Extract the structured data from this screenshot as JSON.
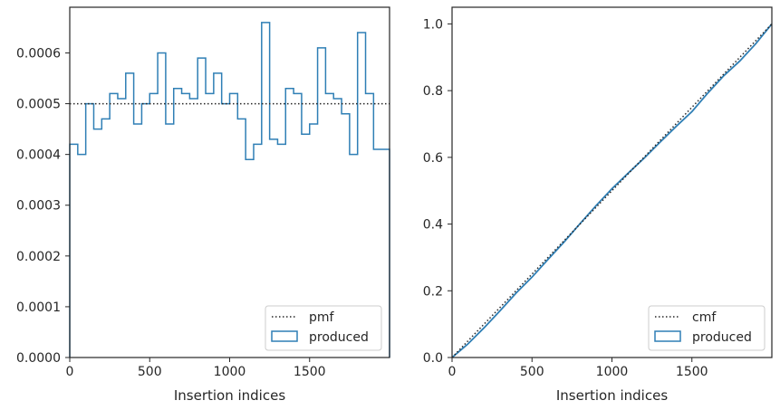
{
  "chart_data": [
    {
      "type": "histogram",
      "xlabel": "Insertion indices",
      "ylabel": "",
      "xlim": [
        0,
        2000
      ],
      "ylim": [
        0,
        0.00069
      ],
      "x_ticks": [
        0,
        500,
        1000,
        1500
      ],
      "x_tick_labels": [
        "0",
        "500",
        "1000",
        "1500"
      ],
      "y_ticks": [
        0,
        0.0001,
        0.0002,
        0.0003,
        0.0004,
        0.0005,
        0.0006
      ],
      "y_tick_labels": [
        "0.0000",
        "0.0001",
        "0.0002",
        "0.0003",
        "0.0004",
        "0.0005",
        "0.0006"
      ],
      "legend_position": "lower right",
      "reference": {
        "name": "pmf",
        "style": "dotted",
        "value": 0.0005
      },
      "series": [
        {
          "name": "produced",
          "style": "step",
          "color": "#2f7fb5",
          "bin_width": 50,
          "bin_edges_start": 0,
          "values": [
            0.00042,
            0.0004,
            0.0005,
            0.00045,
            0.00047,
            0.00052,
            0.00051,
            0.00056,
            0.00046,
            0.0005,
            0.00052,
            0.0006,
            0.00046,
            0.00053,
            0.00052,
            0.00051,
            0.00059,
            0.00052,
            0.00056,
            0.0005,
            0.00052,
            0.00047,
            0.00039,
            0.00042,
            0.00066,
            0.00043,
            0.00042,
            0.00053,
            0.00052,
            0.00044,
            0.00046,
            0.00061,
            0.00052,
            0.00051,
            0.00048,
            0.0004,
            0.00064,
            0.00052,
            0.00041,
            0.00041
          ]
        }
      ]
    },
    {
      "type": "line",
      "xlabel": "Insertion indices",
      "ylabel": "",
      "xlim": [
        0,
        2000
      ],
      "ylim": [
        0,
        1.05
      ],
      "x_ticks": [
        0,
        500,
        1000,
        1500
      ],
      "x_tick_labels": [
        "0",
        "500",
        "1000",
        "1500"
      ],
      "y_ticks": [
        0,
        0.2,
        0.4,
        0.6,
        0.8,
        1.0
      ],
      "y_tick_labels": [
        "0.0",
        "0.2",
        "0.4",
        "0.6",
        "0.8",
        "1.0"
      ],
      "legend_position": "lower right",
      "reference": {
        "name": "cmf",
        "style": "dotted",
        "x": [
          0,
          2000
        ],
        "y": [
          0,
          1.0
        ]
      },
      "series": [
        {
          "name": "produced",
          "style": "step",
          "color": "#2f7fb5",
          "x": [
            0,
            100,
            200,
            300,
            400,
            500,
            600,
            700,
            800,
            900,
            1000,
            1100,
            1200,
            1300,
            1400,
            1500,
            1600,
            1700,
            1800,
            1900,
            2000
          ],
          "y": [
            0,
            0.041,
            0.089,
            0.14,
            0.193,
            0.241,
            0.294,
            0.346,
            0.401,
            0.455,
            0.506,
            0.552,
            0.597,
            0.645,
            0.692,
            0.737,
            0.793,
            0.845,
            0.889,
            0.941,
            1.0
          ]
        }
      ]
    }
  ]
}
